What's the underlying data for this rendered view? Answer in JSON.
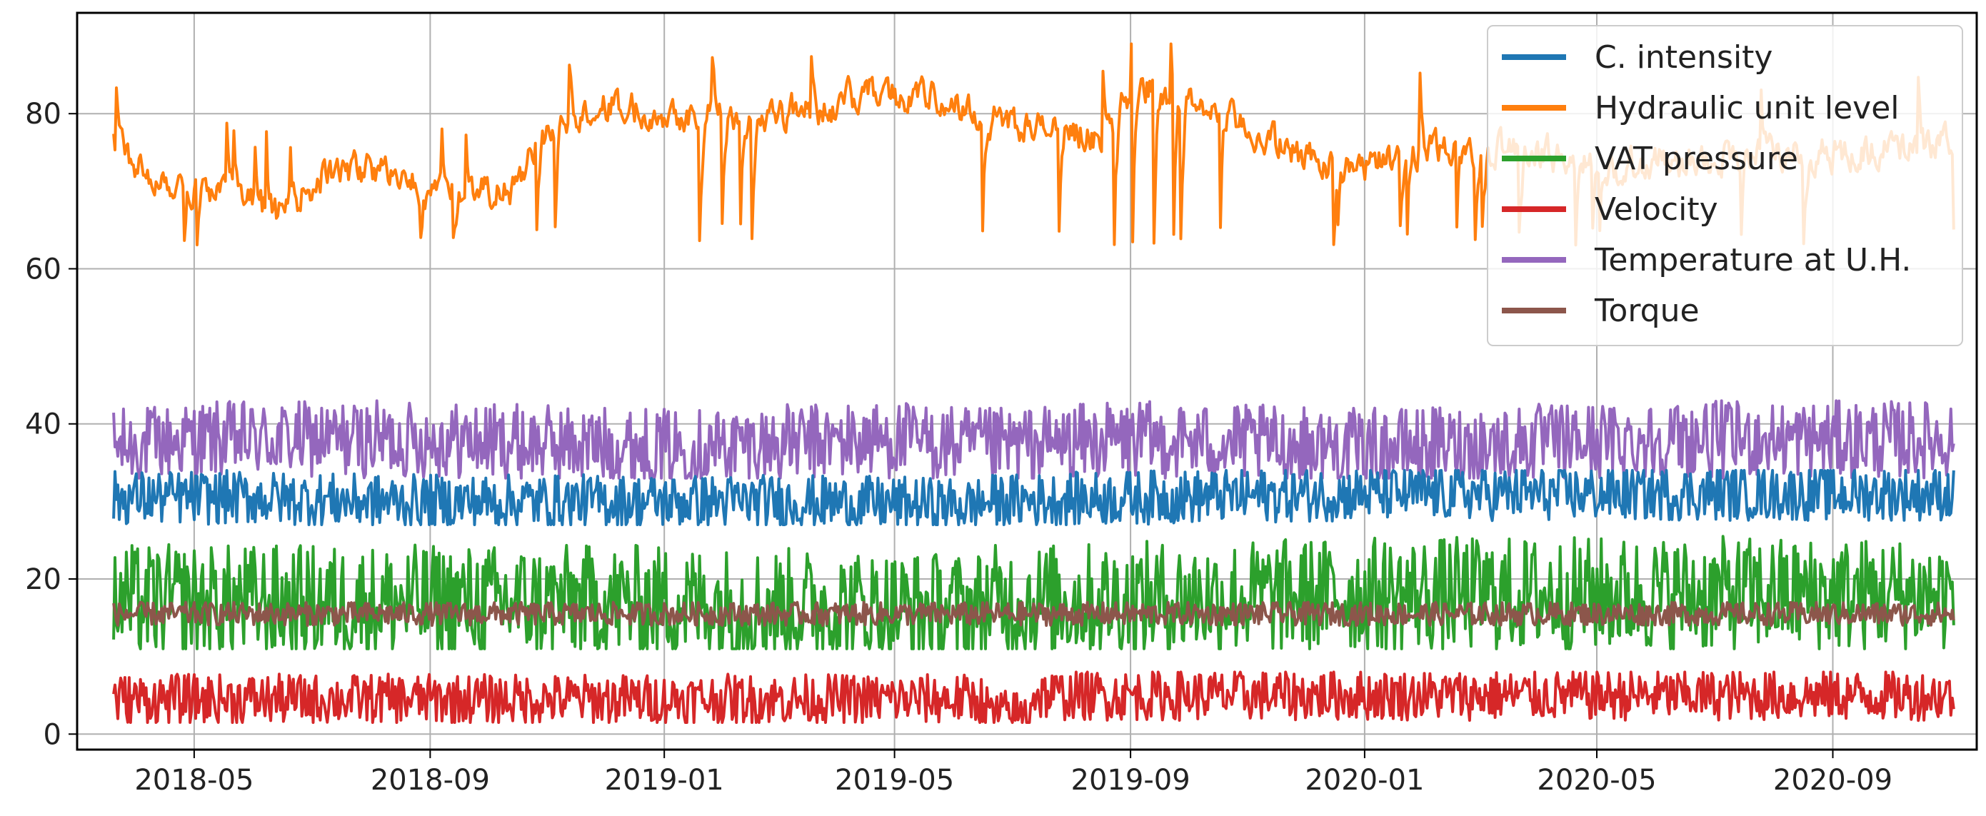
{
  "chart_data": {
    "type": "line",
    "title": "",
    "xlabel": "",
    "ylabel": "",
    "grid": true,
    "legend_position": "top-right",
    "x_range": [
      "2018-03-01",
      "2020-11-15"
    ],
    "ylim": [
      -2,
      93
    ],
    "x_ticks": [
      {
        "date": "2018-05-01",
        "label": "2018-05"
      },
      {
        "date": "2018-09-01",
        "label": "2018-09"
      },
      {
        "date": "2019-01-01",
        "label": "2019-01"
      },
      {
        "date": "2019-05-01",
        "label": "2019-05"
      },
      {
        "date": "2019-09-01",
        "label": "2019-09"
      },
      {
        "date": "2020-01-01",
        "label": "2020-01"
      },
      {
        "date": "2020-05-01",
        "label": "2020-05"
      },
      {
        "date": "2020-09-01",
        "label": "2020-09"
      }
    ],
    "y_ticks": [
      0,
      20,
      40,
      60,
      80
    ],
    "series": [
      {
        "name": "C. intensity",
        "color": "#1f77b4",
        "data_start": "2018-03-20",
        "data_end": "2020-11-03",
        "level_points": [
          [
            "2018-03-20",
            30.5
          ],
          [
            "2018-06-01",
            30.5
          ],
          [
            "2018-08-01",
            30
          ],
          [
            "2018-12-01",
            30
          ],
          [
            "2019-03-01",
            30
          ],
          [
            "2019-06-10",
            29.5
          ],
          [
            "2019-06-20",
            30
          ],
          [
            "2019-09-01",
            30.5
          ],
          [
            "2020-01-01",
            31
          ],
          [
            "2020-06-01",
            31
          ],
          [
            "2020-11-03",
            31
          ]
        ],
        "noise_band": [
          27,
          34
        ]
      },
      {
        "name": "Hydraulic unit level",
        "color": "#ff7f0e",
        "data_start": "2018-03-20",
        "data_end": "2020-11-03",
        "level_points": [
          [
            "2018-03-20",
            76
          ],
          [
            "2018-04-10",
            72
          ],
          [
            "2018-05-15",
            70
          ],
          [
            "2018-06-15",
            67
          ],
          [
            "2018-07-05",
            72
          ],
          [
            "2018-08-01",
            73
          ],
          [
            "2018-09-01",
            70
          ],
          [
            "2018-10-15",
            70
          ],
          [
            "2018-11-01",
            79
          ],
          [
            "2018-12-01",
            81
          ],
          [
            "2019-01-15",
            80
          ],
          [
            "2019-02-15",
            80
          ],
          [
            "2019-04-01",
            81
          ],
          [
            "2019-04-15",
            83
          ],
          [
            "2019-05-20",
            82
          ],
          [
            "2019-06-15",
            80
          ],
          [
            "2019-07-15",
            78
          ],
          [
            "2019-08-20",
            77
          ],
          [
            "2019-09-01",
            84
          ],
          [
            "2019-10-01",
            82
          ],
          [
            "2019-11-01",
            78
          ],
          [
            "2019-12-01",
            74
          ],
          [
            "2020-01-01",
            73
          ],
          [
            "2020-02-01",
            76
          ],
          [
            "2020-04-01",
            75
          ],
          [
            "2020-05-01",
            73
          ],
          [
            "2020-06-01",
            74
          ],
          [
            "2020-09-01",
            75
          ],
          [
            "2020-11-03",
            76
          ]
        ],
        "noise_band": [
          63,
          89
        ]
      },
      {
        "name": "VAT pressure",
        "color": "#2ca02c",
        "data_start": "2018-03-20",
        "data_end": "2020-11-03",
        "level_points": [
          [
            "2018-03-20",
            17
          ],
          [
            "2018-09-01",
            17
          ],
          [
            "2019-01-01",
            17
          ],
          [
            "2019-06-10",
            16
          ],
          [
            "2019-06-20",
            17
          ],
          [
            "2020-01-01",
            18
          ],
          [
            "2020-11-03",
            18
          ]
        ],
        "noise_band": [
          11,
          26
        ]
      },
      {
        "name": "Velocity",
        "color": "#d62728",
        "data_start": "2018-03-20",
        "data_end": "2020-11-03",
        "level_points": [
          [
            "2018-03-20",
            4.5
          ],
          [
            "2019-06-15",
            4.5
          ],
          [
            "2019-06-20",
            2.5
          ],
          [
            "2019-07-10",
            2.5
          ],
          [
            "2019-07-11",
            5
          ],
          [
            "2020-11-03",
            5
          ]
        ],
        "noise_band": [
          1.5,
          8
        ]
      },
      {
        "name": "Temperature at U.H.",
        "color": "#9467bd",
        "data_start": "2018-03-20",
        "data_end": "2020-11-03",
        "level_points": [
          [
            "2018-03-20",
            37
          ],
          [
            "2018-05-01",
            38
          ],
          [
            "2018-09-01",
            38
          ],
          [
            "2019-01-01",
            37
          ],
          [
            "2019-05-01",
            38
          ],
          [
            "2019-06-15",
            37
          ],
          [
            "2019-09-01",
            38
          ],
          [
            "2020-01-01",
            37
          ],
          [
            "2020-06-01",
            38
          ],
          [
            "2020-11-03",
            38
          ]
        ],
        "noise_band": [
          33,
          43
        ]
      },
      {
        "name": "Torque",
        "color": "#8c564b",
        "data_start": "2018-03-20",
        "data_end": "2020-11-03",
        "level_points": [
          [
            "2018-03-20",
            15.5
          ],
          [
            "2020-11-03",
            15.5
          ]
        ],
        "noise_band": [
          14,
          17
        ]
      }
    ]
  }
}
